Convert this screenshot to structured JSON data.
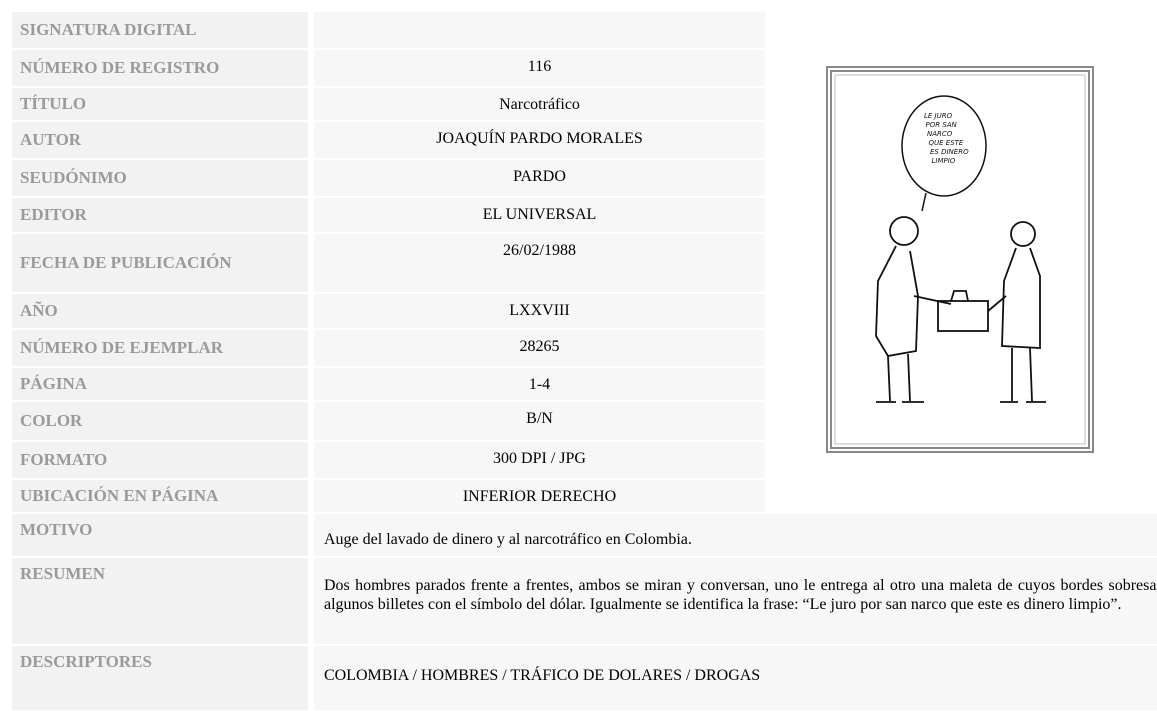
{
  "table": {
    "rows": [
      {
        "label": "SIGNATURA DIGITAL"
      },
      {
        "label": "NÚMERO DE REGISTRO",
        "value": "116"
      },
      {
        "label": "TÍTULO",
        "value": "Narcotráfico"
      },
      {
        "label": "AUTOR",
        "value": "JOAQUÍN PARDO MORALES"
      },
      {
        "label": "SEUDÓNIMO",
        "value": "PARDO"
      },
      {
        "label": "EDITOR",
        "value": "EL UNIVERSAL"
      },
      {
        "label": "FECHA DE PUBLICACIÓN",
        "value": "26/02/1988"
      },
      {
        "label": "AÑO",
        "value": "LXXVIII"
      },
      {
        "label": "NÚMERO DE EJEMPLAR",
        "value": "28265"
      },
      {
        "label": "PÁGINA",
        "value": "1-4"
      },
      {
        "label": "COLOR",
        "value": "B/N"
      },
      {
        "label": "FORMATO",
        "value": "300 DPI / JPG"
      },
      {
        "label": "UBICACIÓN EN PÁGINA",
        "value": "INFERIOR DERECHO"
      },
      {
        "label": "MOTIVO",
        "value": "Auge del lavado de dinero y al narcotráfico en Colombia."
      },
      {
        "label": "RESUMEN",
        "value": "Dos hombres parados frente a frentes, ambos se miran y conversan, uno le entrega al otro una maleta de cuyos bordes sobresalen algunos billetes con el símbolo del dólar. Igualmente se identifica la frase: “Le juro por san narco que este es dinero limpio”."
      },
      {
        "label": "DESCRIPTORES",
        "value": "COLOMBIA / HOMBRES / TRÁFICO DE DOLARES / DROGAS"
      }
    ]
  },
  "image": {
    "speech_bubble": [
      "LE JURO",
      "POR SAN",
      "NARCO",
      "QUE ESTE",
      "ES DINERO",
      "LIMPIO"
    ]
  }
}
